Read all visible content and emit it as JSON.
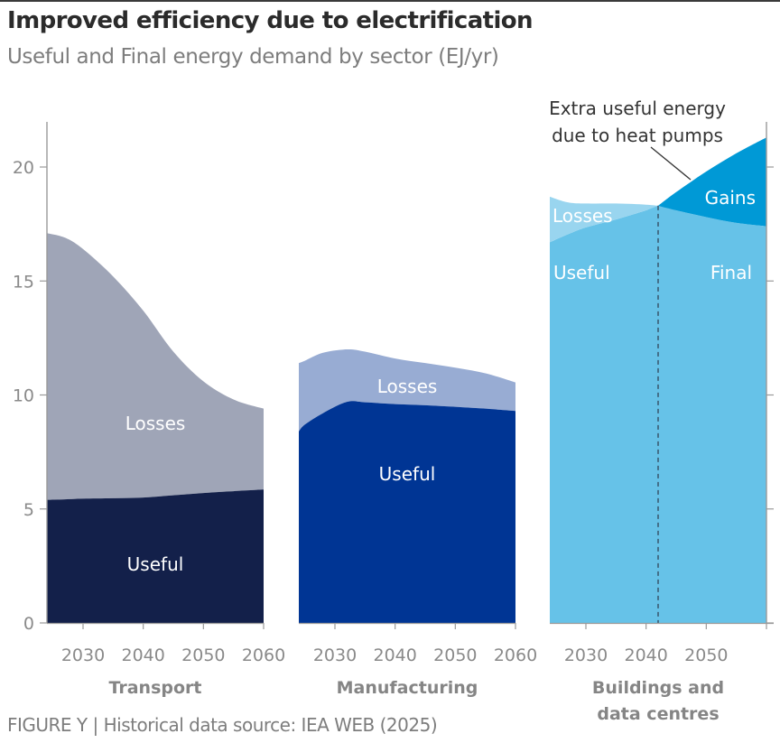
{
  "header": {
    "title": "Improved efficiency due to electrification",
    "subtitle": "Useful and Final energy demand by sector (EJ/yr)"
  },
  "footer": "FIGURE Y | Historical data source: IEA WEB (2025)",
  "colors": {
    "transport_losses": "#9fa5b7",
    "transport_useful": "#13204a",
    "manufacturing_losses": "#98acd3",
    "manufacturing_useful": "#003594",
    "buildings_losses": "#99d5ef",
    "buildings_useful": "#66c2e8",
    "buildings_gains": "#0099d6",
    "axis": "#9a9a9a"
  },
  "chart_data": [
    {
      "type": "area",
      "panel": "transport",
      "title": "Transport",
      "x": [
        2024,
        2027,
        2030,
        2035,
        2040,
        2045,
        2050,
        2055,
        2060
      ],
      "xticks": [
        "2030",
        "2040",
        "2050",
        "2060"
      ],
      "xlim": [
        2024,
        2060
      ],
      "ylim": [
        0,
        22
      ],
      "yticks": [
        "0",
        "5",
        "10",
        "15",
        "20"
      ],
      "series": [
        {
          "name": "Useful",
          "values": [
            5.4,
            5.42,
            5.45,
            5.47,
            5.5,
            5.6,
            5.7,
            5.78,
            5.85
          ]
        },
        {
          "name": "Losses (total final)",
          "values": [
            17.1,
            16.9,
            16.4,
            15.2,
            13.7,
            11.9,
            10.6,
            9.8,
            9.4
          ]
        }
      ],
      "labels": {
        "losses": "Losses",
        "useful": "Useful"
      }
    },
    {
      "type": "area",
      "panel": "manufacturing",
      "title": "Manufacturing",
      "x": [
        2024,
        2025,
        2028,
        2032,
        2035,
        2040,
        2045,
        2050,
        2055,
        2060
      ],
      "xticks": [
        "2030",
        "2040",
        "2050",
        "2060"
      ],
      "xlim": [
        2024,
        2060
      ],
      "ylim": [
        0,
        22
      ],
      "series": [
        {
          "name": "Useful",
          "values": [
            8.4,
            8.7,
            9.2,
            9.7,
            9.68,
            9.6,
            9.55,
            9.48,
            9.4,
            9.3
          ]
        },
        {
          "name": "Losses (total final)",
          "values": [
            11.4,
            11.5,
            11.85,
            12.0,
            11.9,
            11.6,
            11.4,
            11.2,
            10.95,
            10.55
          ]
        }
      ],
      "labels": {
        "losses": "Losses",
        "useful": "Useful"
      }
    },
    {
      "type": "area",
      "panel": "buildings",
      "title": "Buildings and\ndata centres",
      "x": [
        2024,
        2027,
        2030,
        2035,
        2040,
        2042,
        2045,
        2050,
        2055,
        2060
      ],
      "xticks": [
        "2030",
        "2040",
        "2050",
        ""
      ],
      "xlim": [
        2024,
        2060
      ],
      "ylim": [
        0,
        22
      ],
      "crossover_year": 2042,
      "series": [
        {
          "name": "Useful",
          "values": [
            16.7,
            17.05,
            17.35,
            17.7,
            18.1,
            18.3,
            18.9,
            19.8,
            20.6,
            21.3
          ]
        },
        {
          "name": "Final",
          "values": [
            18.7,
            18.45,
            18.4,
            18.4,
            18.35,
            18.3,
            18.1,
            17.8,
            17.55,
            17.4
          ]
        }
      ],
      "labels": {
        "losses": "Losses",
        "useful": "Useful",
        "gains": "Gains",
        "final": "Final"
      },
      "annotation": "Extra useful energy\ndue to heat pumps"
    }
  ]
}
